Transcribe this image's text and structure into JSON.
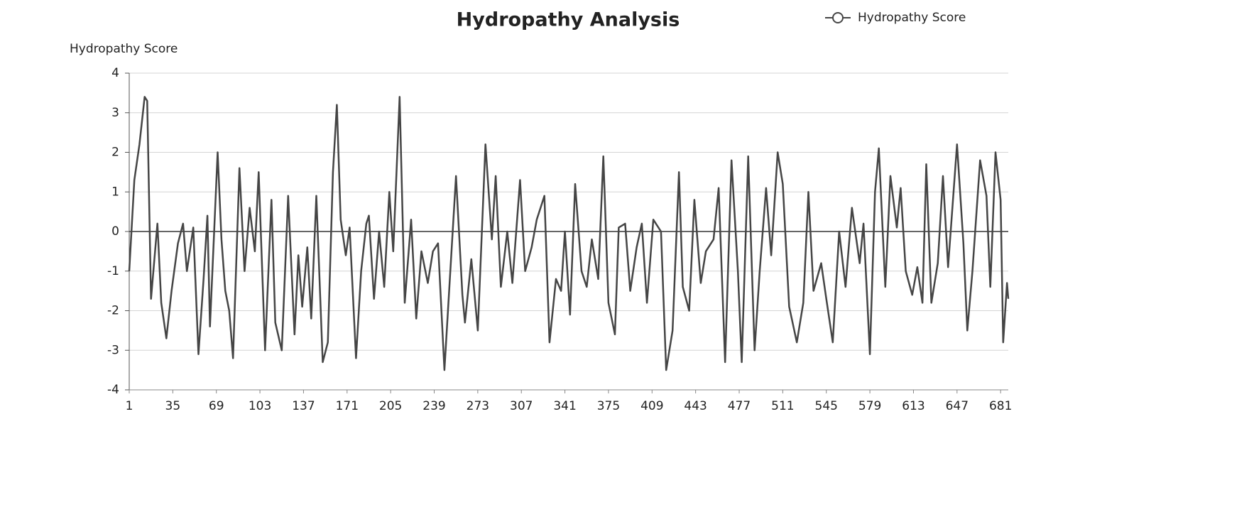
{
  "chart_data": {
    "type": "line",
    "title": "Hydropathy Analysis",
    "y_label": "Hydropathy Score",
    "x": [
      1,
      5,
      9,
      13,
      15,
      18,
      23,
      26,
      30,
      34,
      39,
      43,
      46,
      51,
      55,
      59,
      62,
      64,
      70,
      73,
      76,
      79,
      82,
      87,
      91,
      95,
      99,
      102,
      107,
      112,
      115,
      120,
      125,
      130,
      133,
      136,
      140,
      143,
      147,
      152,
      156,
      160,
      163,
      166,
      170,
      173,
      178,
      182,
      186,
      188,
      192,
      196,
      200,
      204,
      207,
      212,
      216,
      221,
      225,
      229,
      234,
      238,
      242,
      247,
      251,
      256,
      261,
      263,
      268,
      273,
      279,
      284,
      287,
      291,
      296,
      300,
      306,
      310,
      315,
      319,
      325,
      329,
      334,
      338,
      341,
      345,
      349,
      354,
      358,
      362,
      367,
      371,
      375,
      380,
      383,
      388,
      392,
      397,
      401,
      405,
      410,
      416,
      420,
      425,
      430,
      433,
      438,
      442,
      447,
      451,
      457,
      461,
      466,
      471,
      476,
      479,
      484,
      489,
      493,
      498,
      502,
      507,
      511,
      516,
      522,
      527,
      531,
      535,
      541,
      545,
      550,
      555,
      560,
      565,
      571,
      574,
      579,
      583,
      586,
      591,
      595,
      600,
      603,
      607,
      612,
      616,
      620,
      623,
      627,
      632,
      636,
      640,
      647,
      652,
      655,
      659,
      665,
      670,
      673,
      677,
      681,
      683,
      686,
      687
    ],
    "series": [
      {
        "name": "Hydropathy Score",
        "color": "#454545",
        "values": [
          -1,
          1.3,
          2.2,
          3.4,
          3.3,
          -1.7,
          0.2,
          -1.8,
          -2.7,
          -1.5,
          -0.3,
          0.2,
          -1,
          0.1,
          -3.1,
          -1.2,
          0.4,
          -2.4,
          2,
          -0.2,
          -1.5,
          -2,
          -3.2,
          1.6,
          -1,
          0.6,
          -0.5,
          1.5,
          -3,
          0.8,
          -2.3,
          -3,
          0.9,
          -2.6,
          -0.6,
          -1.9,
          -0.4,
          -2.2,
          0.9,
          -3.3,
          -2.8,
          1.5,
          3.2,
          0.3,
          -0.6,
          0.1,
          -3.2,
          -1,
          0.2,
          0.4,
          -1.7,
          0,
          -1.4,
          1,
          -0.5,
          3.4,
          -1.8,
          0.3,
          -2.2,
          -0.5,
          -1.3,
          -0.5,
          -0.3,
          -3.5,
          -1.3,
          1.4,
          -1.6,
          -2.3,
          -0.7,
          -2.5,
          2.2,
          -0.2,
          1.4,
          -1.4,
          0,
          -1.3,
          1.3,
          -1,
          -0.4,
          0.3,
          0.9,
          -2.8,
          -1.2,
          -1.5,
          0,
          -2.1,
          1.2,
          -1,
          -1.4,
          -0.2,
          -1.2,
          1.9,
          -1.8,
          -2.6,
          0.1,
          0.2,
          -1.5,
          -0.4,
          0.2,
          -1.8,
          0.3,
          0,
          -3.5,
          -2.5,
          1.5,
          -1.4,
          -2,
          0.8,
          -1.3,
          -0.5,
          -0.2,
          1.1,
          -3.3,
          1.8,
          -1,
          -3.3,
          1.9,
          -3,
          -1,
          1.1,
          -0.6,
          2,
          1.2,
          -1.9,
          -2.8,
          -1.8,
          1,
          -1.5,
          -0.8,
          -1.7,
          -2.8,
          0,
          -1.4,
          0.6,
          -0.8,
          0.2,
          -3.1,
          1,
          2.1,
          -1.4,
          1.4,
          0.1,
          1.1,
          -1,
          -1.6,
          -0.9,
          -1.8,
          1.7,
          -1.8,
          -0.8,
          1.4,
          -0.9,
          2.2,
          -0.3,
          -2.5,
          -1,
          1.8,
          0.9,
          -1.4,
          2,
          0.8,
          -2.8,
          -1.3,
          -1.7
        ]
      }
    ],
    "xlim": [
      1,
      687
    ],
    "xticks": [
      1,
      35,
      69,
      103,
      137,
      171,
      205,
      239,
      273,
      307,
      341,
      375,
      409,
      443,
      477,
      511,
      545,
      579,
      613,
      647,
      681
    ],
    "ylim": [
      -4,
      4
    ],
    "yticks": [
      -4,
      -3,
      -2,
      -1,
      0,
      1,
      2,
      3,
      4
    ],
    "grid": true
  }
}
